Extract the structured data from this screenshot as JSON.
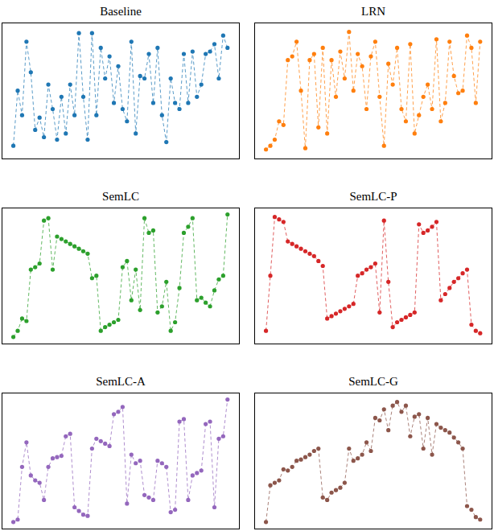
{
  "chart_data": [
    {
      "type": "line",
      "title": "Baseline",
      "color": "#1f77b4",
      "line_style": "dashed",
      "marker": "circle",
      "tick_labels": false,
      "xlim": [
        -2.5,
        51.5
      ],
      "ylim": [
        -0.05,
        1.05
      ],
      "x": [
        0,
        1,
        2,
        3,
        4,
        5,
        6,
        7,
        8,
        9,
        10,
        11,
        12,
        13,
        14,
        15,
        16,
        17,
        18,
        19,
        20,
        21,
        22,
        23,
        24,
        25,
        26,
        27,
        28,
        29,
        30,
        31,
        32,
        33,
        34,
        35,
        36,
        37,
        38,
        39,
        40,
        41,
        42,
        43,
        44,
        45,
        46,
        47,
        48,
        49
      ],
      "values": [
        0.05,
        0.5,
        0.3,
        0.9,
        0.65,
        0.18,
        0.28,
        0.12,
        0.55,
        0.35,
        0.1,
        0.45,
        0.15,
        0.55,
        0.3,
        0.97,
        0.45,
        0.1,
        0.97,
        0.3,
        0.85,
        0.6,
        0.78,
        0.4,
        0.7,
        0.35,
        0.25,
        0.9,
        0.15,
        0.62,
        0.6,
        0.8,
        0.4,
        0.85,
        0.3,
        0.08,
        0.6,
        0.4,
        0.35,
        0.8,
        0.4,
        0.82,
        0.45,
        0.55,
        0.8,
        0.82,
        0.88,
        0.6,
        0.95,
        0.85
      ]
    },
    {
      "type": "line",
      "title": "LRN",
      "color": "#ff7f0e",
      "line_style": "dashed",
      "marker": "circle",
      "tick_labels": false,
      "xlim": [
        -2.5,
        51.5
      ],
      "ylim": [
        -0.05,
        1.05
      ],
      "x": [
        0,
        1,
        2,
        3,
        4,
        5,
        6,
        7,
        8,
        9,
        10,
        11,
        12,
        13,
        14,
        15,
        16,
        17,
        18,
        19,
        20,
        21,
        22,
        23,
        24,
        25,
        26,
        27,
        28,
        29,
        30,
        31,
        32,
        33,
        34,
        35,
        36,
        37,
        38,
        39,
        40,
        41,
        42,
        43,
        44,
        45,
        46,
        47,
        48,
        49
      ],
      "values": [
        0.02,
        0.05,
        0.1,
        0.25,
        0.22,
        0.75,
        0.78,
        0.9,
        0.5,
        0.03,
        0.75,
        0.8,
        0.2,
        0.85,
        0.15,
        0.75,
        0.45,
        0.82,
        0.6,
        0.98,
        0.5,
        0.8,
        0.7,
        0.35,
        0.78,
        0.9,
        0.45,
        0.05,
        0.72,
        0.55,
        0.85,
        0.35,
        0.25,
        0.88,
        0.15,
        0.3,
        0.45,
        0.55,
        0.35,
        0.92,
        0.25,
        0.4,
        0.9,
        0.62,
        0.48,
        0.5,
        0.95,
        0.85,
        0.4,
        0.9
      ]
    },
    {
      "type": "line",
      "title": "SemLC",
      "color": "#2ca02c",
      "line_style": "dashed",
      "marker": "circle",
      "tick_labels": false,
      "xlim": [
        -2.5,
        51.5
      ],
      "ylim": [
        -0.05,
        1.05
      ],
      "x": [
        0,
        1,
        2,
        3,
        4,
        5,
        6,
        7,
        8,
        9,
        10,
        11,
        12,
        13,
        14,
        15,
        16,
        17,
        18,
        19,
        20,
        21,
        22,
        23,
        24,
        25,
        26,
        27,
        28,
        29,
        30,
        31,
        32,
        33,
        34,
        35,
        36,
        37,
        38,
        39,
        40,
        41,
        42,
        43,
        44,
        45,
        46,
        47,
        48,
        49
      ],
      "values": [
        0.0,
        0.05,
        0.15,
        0.13,
        0.55,
        0.57,
        0.6,
        0.95,
        0.97,
        0.55,
        0.82,
        0.8,
        0.78,
        0.76,
        0.74,
        0.72,
        0.7,
        0.68,
        0.48,
        0.5,
        0.05,
        0.08,
        0.1,
        0.12,
        0.14,
        0.57,
        0.62,
        0.3,
        0.55,
        0.22,
        0.97,
        0.85,
        0.87,
        0.2,
        0.25,
        0.45,
        0.05,
        0.12,
        0.4,
        0.85,
        0.9,
        0.97,
        0.3,
        0.32,
        0.28,
        0.25,
        0.38,
        0.47,
        0.5,
        1.0
      ]
    },
    {
      "type": "line",
      "title": "SemLC-P",
      "color": "#d62728",
      "line_style": "dashed",
      "marker": "circle",
      "tick_labels": false,
      "xlim": [
        -2.5,
        51.5
      ],
      "ylim": [
        -0.05,
        1.05
      ],
      "x": [
        0,
        1,
        2,
        3,
        4,
        5,
        6,
        7,
        8,
        9,
        10,
        11,
        12,
        13,
        14,
        15,
        16,
        17,
        18,
        19,
        20,
        21,
        22,
        23,
        24,
        25,
        26,
        27,
        28,
        29,
        30,
        31,
        32,
        33,
        34,
        35,
        36,
        37,
        38,
        39,
        40,
        41,
        42,
        43,
        44,
        45,
        46,
        47,
        48,
        49
      ],
      "values": [
        0.05,
        0.5,
        0.98,
        0.96,
        0.94,
        0.78,
        0.76,
        0.74,
        0.72,
        0.7,
        0.68,
        0.66,
        0.62,
        0.58,
        0.15,
        0.17,
        0.19,
        0.21,
        0.23,
        0.25,
        0.27,
        0.5,
        0.52,
        0.55,
        0.57,
        0.6,
        0.2,
        0.95,
        0.45,
        0.08,
        0.12,
        0.14,
        0.16,
        0.18,
        0.2,
        0.92,
        0.85,
        0.87,
        0.9,
        0.94,
        0.3,
        0.35,
        0.4,
        0.45,
        0.48,
        0.52,
        0.55,
        0.1,
        0.05,
        0.03
      ]
    },
    {
      "type": "line",
      "title": "SemLC-A",
      "color": "#9467bd",
      "line_style": "dashed",
      "marker": "circle",
      "tick_labels": false,
      "xlim": [
        -2.5,
        51.5
      ],
      "ylim": [
        -0.05,
        1.05
      ],
      "x": [
        0,
        1,
        2,
        3,
        4,
        5,
        6,
        7,
        8,
        9,
        10,
        11,
        12,
        13,
        14,
        15,
        16,
        17,
        18,
        19,
        20,
        21,
        22,
        23,
        24,
        25,
        26,
        27,
        28,
        29,
        30,
        31,
        32,
        33,
        34,
        35,
        36,
        37,
        38,
        39,
        40,
        41,
        42,
        43,
        44,
        45,
        46,
        47,
        48,
        49
      ],
      "values": [
        0.0,
        0.02,
        0.45,
        0.65,
        0.38,
        0.34,
        0.32,
        0.18,
        0.45,
        0.52,
        0.53,
        0.54,
        0.7,
        0.72,
        0.12,
        0.09,
        0.06,
        0.05,
        0.6,
        0.68,
        0.66,
        0.64,
        0.62,
        0.88,
        0.9,
        0.94,
        0.15,
        0.55,
        0.48,
        0.5,
        0.22,
        0.2,
        0.18,
        0.5,
        0.48,
        0.45,
        0.08,
        0.1,
        0.82,
        0.84,
        0.18,
        0.38,
        0.4,
        0.42,
        0.8,
        0.82,
        0.12,
        0.68,
        0.7,
        1.0
      ]
    },
    {
      "type": "line",
      "title": "SemLC-G",
      "color": "#8c564b",
      "line_style": "dashed",
      "marker": "circle",
      "tick_labels": false,
      "xlim": [
        -2.5,
        51.5
      ],
      "ylim": [
        -0.05,
        1.05
      ],
      "x": [
        0,
        1,
        2,
        3,
        4,
        5,
        6,
        7,
        8,
        9,
        10,
        11,
        12,
        13,
        14,
        15,
        16,
        17,
        18,
        19,
        20,
        21,
        22,
        23,
        24,
        25,
        26,
        27,
        28,
        29,
        30,
        31,
        32,
        33,
        34,
        35,
        36,
        37,
        38,
        39,
        40,
        41,
        42,
        43,
        44,
        45,
        46,
        47,
        48,
        49
      ],
      "values": [
        0.0,
        0.3,
        0.32,
        0.34,
        0.43,
        0.42,
        0.45,
        0.5,
        0.51,
        0.53,
        0.55,
        0.58,
        0.6,
        0.2,
        0.18,
        0.24,
        0.26,
        0.28,
        0.32,
        0.6,
        0.5,
        0.52,
        0.55,
        0.65,
        0.58,
        0.85,
        0.83,
        0.92,
        0.75,
        0.95,
        0.98,
        0.9,
        0.95,
        0.7,
        0.86,
        0.88,
        0.6,
        0.85,
        0.55,
        0.8,
        0.77,
        0.75,
        0.73,
        0.69,
        0.65,
        0.6,
        0.13,
        0.1,
        0.04,
        0.02
      ]
    }
  ]
}
